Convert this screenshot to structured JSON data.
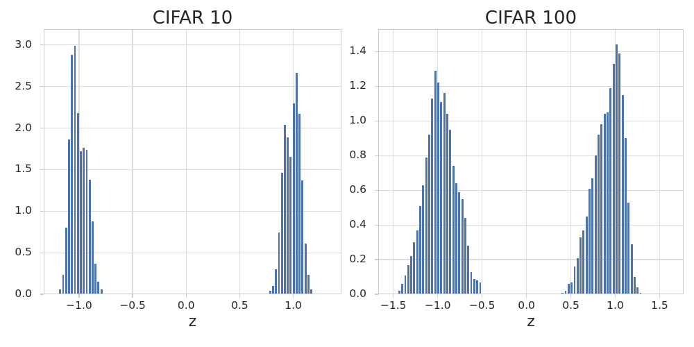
{
  "figure": {
    "background_color": "#ffffff",
    "bar_color": "#4c72b0",
    "grid_color": "#dcdcdc",
    "frame_color": "#cccccc",
    "tick_mark_color": "#cccccc",
    "text_color": "#262626"
  },
  "chart_data": [
    {
      "type": "bar",
      "chart_kind": "histogram",
      "title": "CIFAR 10",
      "xlabel": "z",
      "ylabel": "",
      "grid": true,
      "legend": "none",
      "xlim": [
        -1.33,
        1.45
      ],
      "ylim": [
        0,
        3.19
      ],
      "bin_width": 0.0275,
      "xticks": [
        {
          "v": -1.0,
          "label": "−1.0"
        },
        {
          "v": -0.5,
          "label": "−0.5"
        },
        {
          "v": 0.0,
          "label": "0.0"
        },
        {
          "v": 0.5,
          "label": "0.5"
        },
        {
          "v": 1.0,
          "label": "1.0"
        }
      ],
      "yticks": [
        {
          "v": 0.0,
          "label": "0.0"
        },
        {
          "v": 0.5,
          "label": "0.5"
        },
        {
          "v": 1.0,
          "label": "1.0"
        },
        {
          "v": 1.5,
          "label": "1.5"
        },
        {
          "v": 2.0,
          "label": "2.0"
        },
        {
          "v": 2.5,
          "label": "2.5"
        },
        {
          "v": 3.0,
          "label": "3.0"
        }
      ],
      "clusters": [
        {
          "start": -1.19,
          "density_values": [
            0.06,
            0.23,
            0.8,
            1.86,
            2.88,
            2.99,
            2.18,
            1.72,
            1.76,
            1.74,
            1.38,
            0.88,
            0.37,
            0.15,
            0.06,
            0.01
          ]
        },
        {
          "start": 0.77,
          "density_values": [
            0.04,
            0.1,
            0.3,
            0.74,
            1.46,
            2.04,
            1.89,
            1.65,
            2.3,
            2.66,
            2.17,
            1.37,
            0.61,
            0.23,
            0.06,
            0.01
          ]
        }
      ]
    },
    {
      "type": "bar",
      "chart_kind": "histogram",
      "title": "CIFAR 100",
      "xlabel": "z",
      "ylabel": "",
      "grid": true,
      "legend": "none",
      "xlim": [
        -1.67,
        1.77
      ],
      "ylim": [
        0,
        1.53
      ],
      "bin_width": 0.0338,
      "xticks": [
        {
          "v": -1.5,
          "label": "−1.5"
        },
        {
          "v": -1.0,
          "label": "−1.0"
        },
        {
          "v": -0.5,
          "label": "−0.5"
        },
        {
          "v": 0.0,
          "label": "0.0"
        },
        {
          "v": 0.5,
          "label": "0.5"
        },
        {
          "v": 1.0,
          "label": "1.0"
        },
        {
          "v": 1.5,
          "label": "1.5"
        }
      ],
      "yticks": [
        {
          "v": 0.0,
          "label": "0.0"
        },
        {
          "v": 0.2,
          "label": "0.2"
        },
        {
          "v": 0.4,
          "label": "0.4"
        },
        {
          "v": 0.6,
          "label": "0.6"
        },
        {
          "v": 0.8,
          "label": "0.8"
        },
        {
          "v": 1.0,
          "label": "1.0"
        },
        {
          "v": 1.2,
          "label": "1.2"
        },
        {
          "v": 1.4,
          "label": "1.4"
        }
      ],
      "clusters": [
        {
          "start": -1.45,
          "density_values": [
            0.02,
            0.06,
            0.11,
            0.17,
            0.22,
            0.3,
            0.37,
            0.51,
            0.63,
            0.79,
            0.92,
            1.13,
            1.29,
            1.22,
            1.11,
            1.16,
            1.04,
            0.95,
            0.74,
            0.64,
            0.59,
            0.55,
            0.44,
            0.28,
            0.13,
            0.09,
            0.08,
            0.07
          ]
        },
        {
          "start": 0.39,
          "density_values": [
            0.01,
            0.02,
            0.06,
            0.07,
            0.16,
            0.21,
            0.33,
            0.37,
            0.45,
            0.61,
            0.67,
            0.8,
            0.92,
            0.98,
            1.04,
            1.05,
            1.19,
            1.33,
            1.44,
            1.39,
            1.15,
            0.9,
            0.53,
            0.29,
            0.1,
            0.04,
            0.01
          ]
        }
      ]
    }
  ]
}
